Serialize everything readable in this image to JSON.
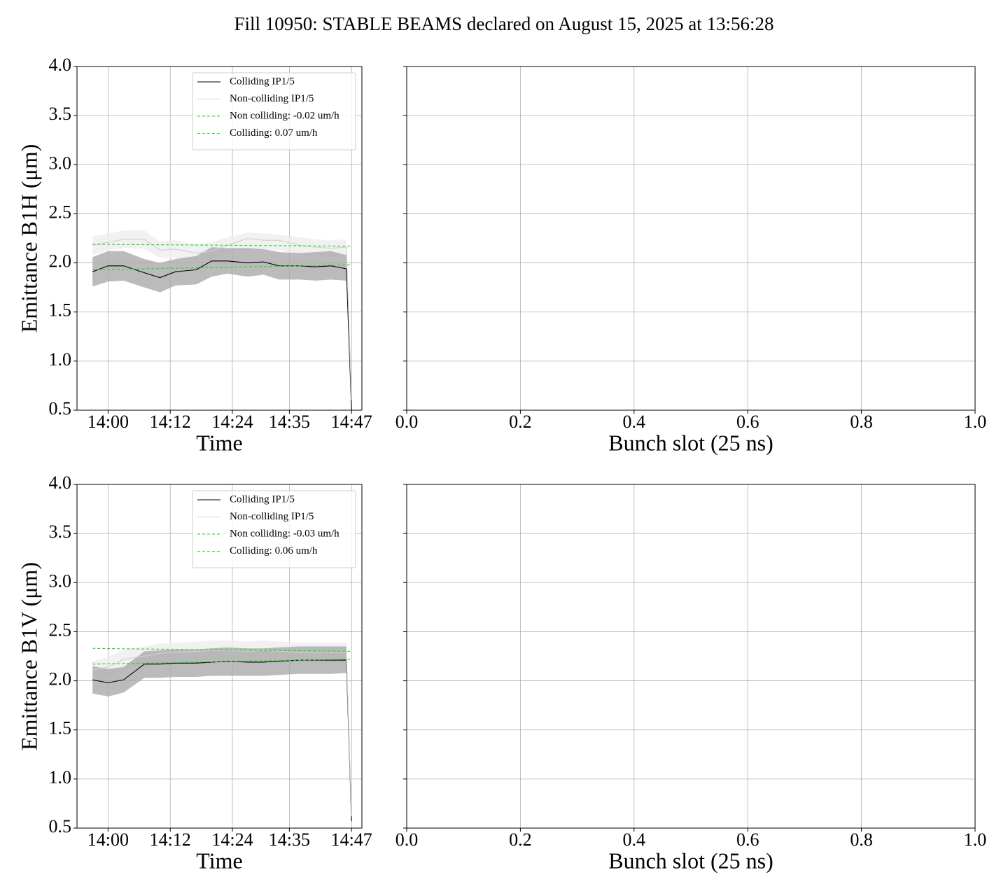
{
  "title": "Fill 10950: STABLE BEAMS declared on August 15, 2025 at 13:56:28",
  "chart_data": [
    {
      "type": "line",
      "xlabel": "Time",
      "ylabel": "Emittance B1H (μm)",
      "grid": true,
      "legend": "upper right",
      "x": [
        "13:57",
        "14:00",
        "14:03",
        "14:07",
        "14:10",
        "14:13",
        "14:17",
        "14:20",
        "14:23",
        "14:27",
        "14:30",
        "14:33",
        "14:37",
        "14:40",
        "14:43",
        "14:46",
        "14:47"
      ],
      "xlim": [
        "13:54",
        "14:49"
      ],
      "xticks": [
        "14:00",
        "14:12",
        "14:24",
        "14:35",
        "14:47"
      ],
      "ylim": [
        0.5,
        4.0
      ],
      "yticks": [
        0.5,
        {
          "value": 1,
          "label": "1.0"
        },
        1.5,
        {
          "value": 2,
          "label": "2.0"
        },
        2.5,
        {
          "value": 3,
          "label": "3.0"
        },
        3.5,
        {
          "value": 4,
          "label": "4.0"
        }
      ],
      "series": [
        {
          "name": "Colliding IP1/5",
          "color": "#000000",
          "band_color": "#aaaaaa",
          "values": [
            1.91,
            1.97,
            1.97,
            1.9,
            1.85,
            1.91,
            1.93,
            2.02,
            2.02,
            2.0,
            2.01,
            1.97,
            1.97,
            1.96,
            1.97,
            1.94,
            0.5
          ],
          "lower": [
            1.76,
            1.81,
            1.82,
            1.75,
            1.7,
            1.77,
            1.78,
            1.86,
            1.89,
            1.86,
            1.88,
            1.83,
            1.83,
            1.82,
            1.83,
            1.82,
            0.48
          ],
          "upper": [
            2.06,
            2.12,
            2.12,
            2.04,
            2.0,
            2.04,
            2.07,
            2.16,
            2.15,
            2.15,
            2.14,
            2.11,
            2.1,
            2.11,
            2.12,
            2.08,
            0.55
          ]
        },
        {
          "name": "Non-colliding IP1/5",
          "color": "#d0d0d0",
          "band_color": "#eeeeee",
          "values": [
            2.18,
            2.21,
            2.24,
            2.24,
            2.13,
            2.14,
            2.1,
            2.12,
            2.18,
            2.25,
            2.23,
            2.23,
            2.18,
            2.16,
            2.15,
            2.16,
            0.6
          ],
          "lower": [
            2.08,
            2.13,
            2.15,
            2.14,
            2.05,
            2.05,
            2.02,
            2.04,
            2.1,
            2.14,
            2.13,
            2.13,
            2.08,
            2.07,
            2.06,
            2.07,
            0.55
          ],
          "upper": [
            2.27,
            2.3,
            2.33,
            2.33,
            2.22,
            2.23,
            2.19,
            2.21,
            2.26,
            2.31,
            2.3,
            2.29,
            2.26,
            2.24,
            2.23,
            2.24,
            0.65
          ]
        },
        {
          "name": "Non colliding: -0.02 um/h",
          "color": "#22dd22",
          "linestyle": "dashed",
          "x": [
            "13:57",
            "14:47"
          ],
          "values": [
            2.19,
            2.17
          ]
        },
        {
          "name": "Colliding: 0.07 um/h",
          "color": "#22dd22",
          "linestyle": "dashed",
          "x": [
            "13:57",
            "14:47"
          ],
          "values": [
            1.93,
            1.98
          ]
        }
      ]
    },
    {
      "type": "scatter",
      "xlabel": "Bunch slot (25 ns)",
      "grid": true,
      "sharey": true,
      "xlim": [
        0,
        1
      ],
      "xticks": [
        {
          "value": 0,
          "label": "0.0"
        },
        0.2,
        0.4,
        0.6,
        0.8,
        {
          "value": 1,
          "label": "1.0"
        }
      ],
      "ylim": [
        0.5,
        4.0
      ],
      "yticks": [
        0.5,
        1,
        1.5,
        2,
        2.5,
        3,
        3.5,
        4
      ]
    },
    {
      "type": "line",
      "xlabel": "Time",
      "ylabel": "Emittance B1V (μm)",
      "grid": true,
      "legend": "upper right",
      "x": [
        "13:57",
        "14:00",
        "14:03",
        "14:07",
        "14:10",
        "14:13",
        "14:17",
        "14:20",
        "14:23",
        "14:27",
        "14:30",
        "14:33",
        "14:37",
        "14:40",
        "14:43",
        "14:46",
        "14:47"
      ],
      "xlim": [
        "13:54",
        "14:49"
      ],
      "xticks": [
        "14:00",
        "14:12",
        "14:24",
        "14:35",
        "14:47"
      ],
      "ylim": [
        0.5,
        4.0
      ],
      "yticks": [
        0.5,
        {
          "value": 1,
          "label": "1.0"
        },
        1.5,
        {
          "value": 2,
          "label": "2.0"
        },
        2.5,
        {
          "value": 3,
          "label": "3.0"
        },
        3.5,
        {
          "value": 4,
          "label": "4.0"
        }
      ],
      "series": [
        {
          "name": "Colliding IP1/5",
          "color": "#000000",
          "band_color": "#aaaaaa",
          "values": [
            2.01,
            1.98,
            2.01,
            2.17,
            2.17,
            2.18,
            2.18,
            2.19,
            2.2,
            2.19,
            2.19,
            2.2,
            2.21,
            2.21,
            2.21,
            2.21,
            0.57
          ],
          "lower": [
            1.87,
            1.84,
            1.88,
            2.03,
            2.03,
            2.04,
            2.04,
            2.05,
            2.05,
            2.05,
            2.05,
            2.06,
            2.07,
            2.07,
            2.07,
            2.08,
            0.52
          ],
          "upper": [
            2.15,
            2.12,
            2.14,
            2.3,
            2.31,
            2.32,
            2.32,
            2.33,
            2.34,
            2.33,
            2.33,
            2.34,
            2.35,
            2.35,
            2.35,
            2.35,
            0.62
          ]
        },
        {
          "name": "Non-colliding IP1/5",
          "color": "#d0d0d0",
          "band_color": "#eeeeee",
          "values": [
            2.11,
            2.14,
            2.22,
            2.25,
            2.28,
            2.29,
            2.3,
            2.31,
            2.31,
            2.3,
            2.31,
            2.3,
            2.29,
            2.29,
            2.29,
            2.29,
            0.62
          ],
          "lower": [
            2.02,
            2.03,
            2.12,
            2.15,
            2.18,
            2.19,
            2.2,
            2.21,
            2.21,
            2.2,
            2.21,
            2.2,
            2.19,
            2.19,
            2.19,
            2.19,
            0.58
          ],
          "upper": [
            2.2,
            2.24,
            2.32,
            2.35,
            2.38,
            2.39,
            2.4,
            2.41,
            2.41,
            2.4,
            2.41,
            2.4,
            2.39,
            2.39,
            2.39,
            2.39,
            0.66
          ]
        },
        {
          "name": "Non colliding: -0.03 um/h",
          "color": "#22dd22",
          "linestyle": "dashed",
          "x": [
            "13:57",
            "14:47"
          ],
          "values": [
            2.33,
            2.3
          ]
        },
        {
          "name": "Colliding: 0.06 um/h",
          "color": "#22dd22",
          "linestyle": "dashed",
          "x": [
            "13:57",
            "14:47"
          ],
          "values": [
            2.17,
            2.22
          ]
        }
      ]
    },
    {
      "type": "scatter",
      "xlabel": "Bunch slot (25 ns)",
      "grid": true,
      "sharey": true,
      "xlim": [
        0,
        1
      ],
      "xticks": [
        {
          "value": 0,
          "label": "0.0"
        },
        0.2,
        0.4,
        0.6,
        0.8,
        {
          "value": 1,
          "label": "1.0"
        }
      ],
      "ylim": [
        0.5,
        4.0
      ],
      "yticks": [
        0.5,
        1,
        1.5,
        2,
        2.5,
        3,
        3.5,
        4
      ]
    }
  ]
}
